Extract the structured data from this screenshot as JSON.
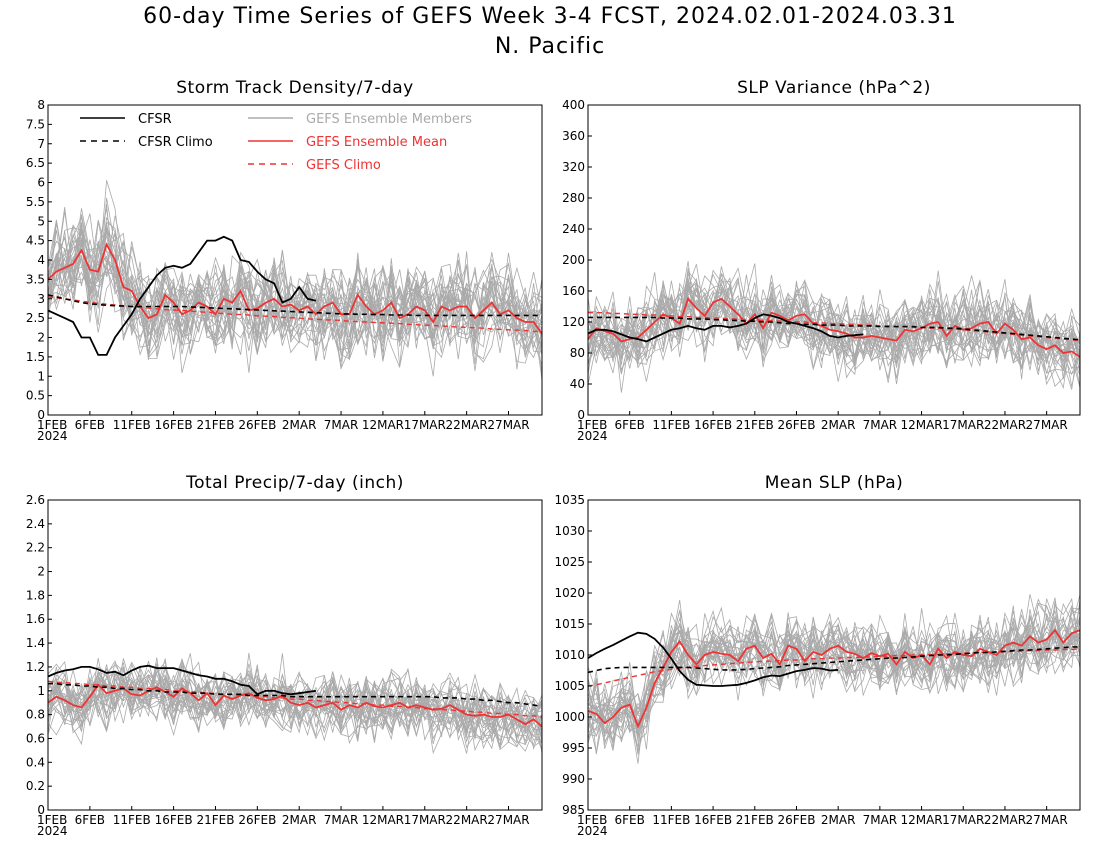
{
  "figure": {
    "title_line1": "60-day Time Series of GEFS Week 3-4 FCST, 2024.02.01-2024.03.31",
    "title_line2": "N. Pacific"
  },
  "legend": [
    {
      "label": "CFSR",
      "color": "#000000",
      "dash": false
    },
    {
      "label": "CFSR Climo",
      "color": "#000000",
      "dash": true
    },
    {
      "label": "GEFS Ensemble Members",
      "color": "#aaaaaa",
      "dash": false
    },
    {
      "label": "GEFS Ensemble Mean",
      "color": "#ee3333",
      "dash": false
    },
    {
      "label": "GEFS Climo",
      "color": "#ee3333",
      "dash": true
    }
  ],
  "colors": {
    "cfsr": "#000000",
    "members": "#aaaaaa",
    "mean": "#ee3333",
    "gefs_climo": "#ee3333"
  },
  "x_axis": {
    "days": 60,
    "tick_labels": [
      "1FEB",
      "6FEB",
      "11FEB",
      "16FEB",
      "21FEB",
      "26FEB",
      "2MAR",
      "7MAR",
      "12MAR",
      "17MAR",
      "22MAR",
      "27MAR"
    ],
    "year_label": "2024"
  },
  "chart_data": [
    {
      "type": "line",
      "title": "Storm Track Density/7-day",
      "ylim": [
        0,
        8
      ],
      "yticks": [
        "0",
        "0.5",
        "1",
        "1.5",
        "2",
        "2.5",
        "3",
        "3.5",
        "4",
        "4.5",
        "5",
        "5.5",
        "6",
        "6.5",
        "7",
        "7.5",
        "8"
      ],
      "x_start": "2024-02-01",
      "series": [
        {
          "name": "CFSR",
          "start": 0,
          "values": [
            2.7,
            2.6,
            2.5,
            2.4,
            2.0,
            2.0,
            1.55,
            1.55,
            2.0,
            2.3,
            2.6,
            3.0,
            3.3,
            3.6,
            3.8,
            3.85,
            3.8,
            3.9,
            4.2,
            4.5,
            4.5,
            4.6,
            4.5,
            4.0,
            3.95,
            3.7,
            3.5,
            3.4,
            2.9,
            3.0,
            3.3,
            3.0,
            2.95
          ]
        },
        {
          "name": "CFSR Climo",
          "start": 0,
          "values": [
            3.1,
            3.05,
            3.0,
            2.95,
            2.9,
            2.87,
            2.85,
            2.83,
            2.82,
            2.81,
            2.8,
            2.8,
            2.8,
            2.8,
            2.8,
            2.8,
            2.8,
            2.79,
            2.78,
            2.77,
            2.76,
            2.75,
            2.74,
            2.73,
            2.72,
            2.71,
            2.7,
            2.69,
            2.68,
            2.67,
            2.66,
            2.65,
            2.64,
            2.63,
            2.62,
            2.61,
            2.61,
            2.6,
            2.6,
            2.59,
            2.59,
            2.58,
            2.58,
            2.58,
            2.57,
            2.57,
            2.57,
            2.57,
            2.57,
            2.57,
            2.57,
            2.57,
            2.57,
            2.57,
            2.57,
            2.57,
            2.57,
            2.57,
            2.57,
            2.57
          ]
        },
        {
          "name": "GEFS Ensemble Mean",
          "start": 0,
          "values": [
            3.5,
            3.7,
            3.8,
            3.9,
            4.25,
            3.75,
            3.7,
            4.4,
            4.0,
            3.3,
            3.2,
            2.8,
            2.5,
            2.6,
            3.1,
            2.9,
            2.6,
            2.7,
            2.9,
            2.8,
            2.6,
            3.0,
            2.9,
            3.2,
            2.7,
            2.75,
            2.9,
            3.0,
            2.8,
            2.85,
            2.7,
            2.8,
            2.6,
            2.8,
            2.9,
            2.6,
            2.6,
            3.1,
            2.8,
            2.6,
            2.7,
            2.9,
            2.5,
            2.6,
            2.8,
            2.7,
            2.4,
            2.8,
            2.7,
            2.8,
            2.8,
            2.5,
            2.7,
            2.9,
            2.6,
            2.7,
            2.5,
            2.4,
            2.4,
            2.1
          ]
        },
        {
          "name": "GEFS Climo",
          "start": 0,
          "values": [
            3.05,
            3.02,
            3.0,
            2.97,
            2.94,
            2.91,
            2.88,
            2.86,
            2.84,
            2.82,
            2.8,
            2.78,
            2.76,
            2.74,
            2.72,
            2.71,
            2.7,
            2.68,
            2.66,
            2.65,
            2.63,
            2.62,
            2.6,
            2.59,
            2.58,
            2.56,
            2.55,
            2.54,
            2.52,
            2.51,
            2.5,
            2.48,
            2.47,
            2.46,
            2.45,
            2.44,
            2.42,
            2.41,
            2.4,
            2.39,
            2.38,
            2.37,
            2.36,
            2.34,
            2.33,
            2.32,
            2.31,
            2.3,
            2.28,
            2.27,
            2.26,
            2.25,
            2.24,
            2.22,
            2.21,
            2.2,
            2.19,
            2.18,
            2.16,
            2.15
          ]
        }
      ],
      "members": {
        "count": 30,
        "spread": 0.75
      }
    },
    {
      "type": "line",
      "title": "SLP Variance (hPa^2)",
      "ylim": [
        0,
        400
      ],
      "yticks": [
        "0",
        "40",
        "80",
        "120",
        "160",
        "200",
        "240",
        "280",
        "320",
        "360",
        "400"
      ],
      "x_start": "2024-02-01",
      "series": [
        {
          "name": "CFSR",
          "start": 0,
          "values": [
            105,
            110,
            110,
            108,
            104,
            100,
            98,
            95,
            100,
            105,
            110,
            112,
            115,
            112,
            110,
            115,
            115,
            113,
            115,
            118,
            125,
            130,
            128,
            125,
            120,
            118,
            115,
            112,
            108,
            102,
            100,
            102,
            103,
            104
          ]
        },
        {
          "name": "CFSR Climo",
          "start": 0,
          "values": [
            126,
            126,
            126,
            126,
            126,
            126,
            126,
            126,
            126,
            125,
            125,
            125,
            124,
            124,
            124,
            123,
            123,
            122,
            122,
            121,
            121,
            120,
            120,
            119,
            118,
            118,
            117,
            117,
            116,
            116,
            116,
            115,
            115,
            115,
            115,
            114,
            114,
            114,
            114,
            114,
            113,
            113,
            113,
            112,
            112,
            111,
            110,
            109,
            108,
            107,
            106,
            105,
            104,
            103,
            102,
            101,
            100,
            99,
            98,
            97
          ]
        },
        {
          "name": "GEFS Ensemble Mean",
          "start": 0,
          "values": [
            98,
            112,
            108,
            105,
            95,
            98,
            100,
            110,
            120,
            130,
            125,
            118,
            150,
            138,
            128,
            145,
            150,
            140,
            130,
            118,
            130,
            112,
            132,
            128,
            122,
            128,
            130,
            118,
            115,
            110,
            108,
            105,
            100,
            100,
            102,
            100,
            98,
            96,
            110,
            108,
            112,
            118,
            120,
            102,
            115,
            110,
            112,
            118,
            120,
            105,
            118,
            110,
            98,
            100,
            90,
            85,
            90,
            80,
            82,
            75
          ]
        },
        {
          "name": "GEFS Climo",
          "start": 0,
          "values": [
            132,
            132,
            132,
            131,
            131,
            130,
            130,
            129,
            129,
            128,
            128,
            127,
            127,
            126,
            126,
            125,
            125,
            124,
            124,
            123,
            123,
            122,
            122,
            121,
            121,
            120,
            120,
            119,
            119,
            118,
            118,
            117,
            117,
            116,
            116,
            115,
            115,
            114,
            114,
            113,
            113,
            112,
            112,
            111,
            111,
            110,
            109,
            108,
            107,
            106,
            105,
            104,
            103,
            102,
            101,
            100,
            99,
            98,
            97,
            96
          ]
        }
      ],
      "members": {
        "count": 30,
        "spread": 30
      }
    },
    {
      "type": "line",
      "title": "Total Precip/7-day (inch)",
      "ylim": [
        0,
        2.6
      ],
      "yticks": [
        "0",
        "0.2",
        "0.4",
        "0.6",
        "0.8",
        "1",
        "1.2",
        "1.4",
        "1.6",
        "1.8",
        "2",
        "2.2",
        "2.4",
        "2.6"
      ],
      "x_start": "2024-02-01",
      "series": [
        {
          "name": "CFSR",
          "start": 0,
          "values": [
            1.12,
            1.15,
            1.17,
            1.18,
            1.2,
            1.2,
            1.18,
            1.15,
            1.16,
            1.13,
            1.17,
            1.2,
            1.21,
            1.19,
            1.19,
            1.19,
            1.17,
            1.15,
            1.13,
            1.12,
            1.1,
            1.1,
            1.08,
            1.05,
            1.04,
            0.97,
            1.0,
            1.0,
            0.98,
            0.97,
            0.98,
            0.99,
            1.0
          ]
        },
        {
          "name": "CFSR Climo",
          "start": 0,
          "values": [
            1.06,
            1.06,
            1.05,
            1.05,
            1.04,
            1.04,
            1.03,
            1.03,
            1.02,
            1.02,
            1.01,
            1.01,
            1.0,
            1.0,
            0.99,
            0.99,
            0.99,
            0.98,
            0.98,
            0.98,
            0.97,
            0.97,
            0.97,
            0.97,
            0.96,
            0.96,
            0.96,
            0.96,
            0.96,
            0.95,
            0.95,
            0.95,
            0.95,
            0.95,
            0.95,
            0.95,
            0.95,
            0.95,
            0.95,
            0.95,
            0.95,
            0.95,
            0.95,
            0.95,
            0.95,
            0.95,
            0.95,
            0.94,
            0.94,
            0.94,
            0.93,
            0.93,
            0.92,
            0.92,
            0.91,
            0.9,
            0.9,
            0.89,
            0.88,
            0.87
          ]
        },
        {
          "name": "GEFS Ensemble Mean",
          "start": 0,
          "values": [
            0.9,
            0.95,
            0.92,
            0.88,
            0.86,
            0.95,
            1.05,
            0.98,
            1.0,
            1.02,
            0.97,
            0.96,
            1.0,
            1.03,
            0.99,
            0.95,
            1.02,
            0.98,
            0.92,
            0.98,
            0.88,
            0.96,
            0.93,
            0.96,
            0.98,
            0.94,
            0.92,
            0.93,
            0.96,
            0.9,
            0.88,
            0.9,
            0.86,
            0.88,
            0.9,
            0.84,
            0.88,
            0.86,
            0.9,
            0.87,
            0.86,
            0.88,
            0.9,
            0.86,
            0.88,
            0.86,
            0.84,
            0.85,
            0.88,
            0.84,
            0.8,
            0.79,
            0.8,
            0.78,
            0.78,
            0.8,
            0.76,
            0.72,
            0.76,
            0.7
          ]
        },
        {
          "name": "GEFS Climo",
          "start": 0,
          "values": [
            1.08,
            1.07,
            1.07,
            1.06,
            1.06,
            1.05,
            1.05,
            1.04,
            1.04,
            1.03,
            1.03,
            1.02,
            1.02,
            1.01,
            1.01,
            1.0,
            1.0,
            0.99,
            0.99,
            0.98,
            0.98,
            0.97,
            0.97,
            0.96,
            0.96,
            0.95,
            0.95,
            0.94,
            0.94,
            0.93,
            0.93,
            0.92,
            0.92,
            0.91,
            0.91,
            0.9,
            0.9,
            0.89,
            0.89,
            0.88,
            0.88,
            0.87,
            0.87,
            0.86,
            0.86,
            0.85,
            0.85,
            0.84,
            0.84,
            0.83,
            0.83,
            0.82,
            0.82,
            0.81,
            0.81,
            0.8,
            0.8,
            0.79,
            0.79,
            0.78
          ]
        }
      ],
      "members": {
        "count": 30,
        "spread": 0.16
      }
    },
    {
      "type": "line",
      "title": "Mean SLP (hPa)",
      "ylim": [
        985,
        1035
      ],
      "yticks": [
        "985",
        "990",
        "995",
        "1000",
        "1005",
        "1010",
        "1015",
        "1020",
        "1025",
        "1030",
        "1035"
      ],
      "x_start": "2024-02-01",
      "series": [
        {
          "name": "CFSR",
          "start": 0,
          "values": [
            1009.5,
            1010.3,
            1011,
            1011.6,
            1012.3,
            1013,
            1013.6,
            1013.4,
            1012.6,
            1011.2,
            1009.4,
            1007.4,
            1006,
            1005.2,
            1005.1,
            1005.0,
            1005.0,
            1005.1,
            1005.2,
            1005.5,
            1005.9,
            1006.4,
            1006.7,
            1006.6,
            1007.0,
            1007.4,
            1007.6,
            1007.9,
            1007.8,
            1007.5,
            1007.6
          ]
        },
        {
          "name": "CFSR Climo",
          "start": 0,
          "values": [
            1007.2,
            1007.5,
            1007.8,
            1007.9,
            1008,
            1008,
            1008,
            1008,
            1008,
            1008,
            1008,
            1008,
            1008,
            1007.9,
            1007.8,
            1007.7,
            1007.6,
            1007.6,
            1007.6,
            1007.7,
            1007.8,
            1007.9,
            1008.0,
            1008.1,
            1008.3,
            1008.4,
            1008.5,
            1008.6,
            1008.7,
            1008.8,
            1008.9,
            1009.0,
            1009.1,
            1009.2,
            1009.3,
            1009.4,
            1009.5,
            1009.5,
            1009.6,
            1009.7,
            1009.8,
            1009.9,
            1010.0,
            1010.0,
            1010.1,
            1010.2,
            1010.3,
            1010.4,
            1010.4,
            1010.5,
            1010.6,
            1010.7,
            1010.8,
            1010.8,
            1010.9,
            1011.0,
            1011.1,
            1011.2,
            1011.3,
            1011.3
          ]
        },
        {
          "name": "GEFS Ensemble Mean",
          "start": 0,
          "values": [
            1001,
            1000.5,
            999,
            1000,
            1001.5,
            1002,
            998.5,
            1001.5,
            1005.5,
            1008,
            1010.5,
            1012.2,
            1010,
            1008.5,
            1010,
            1010.5,
            1010.2,
            1010,
            1009,
            1011,
            1011.5,
            1009.5,
            1010.2,
            1008.5,
            1011.5,
            1011,
            1009,
            1010.5,
            1010,
            1011,
            1011.5,
            1010.5,
            1010.2,
            1009.5,
            1010.3,
            1009.8,
            1010.2,
            1008.5,
            1010.5,
            1009.5,
            1010,
            1008.5,
            1011,
            1009.5,
            1010.5,
            1010,
            1009.8,
            1011,
            1010.5,
            1010,
            1011.5,
            1012,
            1011.5,
            1013,
            1012,
            1012.5,
            1014,
            1012,
            1013.5,
            1014
          ]
        },
        {
          "name": "GEFS Climo",
          "start": 0,
          "values": [
            1005,
            1005.2,
            1005.5,
            1005.8,
            1006.1,
            1006.4,
            1006.7,
            1007,
            1007.3,
            1007.5,
            1007.7,
            1007.9,
            1008.0,
            1008.2,
            1008.3,
            1008.4,
            1008.5,
            1008.6,
            1008.7,
            1008.8,
            1008.9,
            1009.0,
            1009.0,
            1009.1,
            1009.2,
            1009.2,
            1009.3,
            1009.4,
            1009.4,
            1009.5,
            1009.5,
            1009.6,
            1009.6,
            1009.7,
            1009.7,
            1009.8,
            1009.8,
            1009.9,
            1009.9,
            1010.0,
            1010.0,
            1010.1,
            1010.1,
            1010.2,
            1010.2,
            1010.3,
            1010.3,
            1010.4,
            1010.4,
            1010.5,
            1010.5,
            1010.6,
            1010.6,
            1010.7,
            1010.7,
            1010.8,
            1010.8,
            1010.9,
            1010.9,
            1011.0
          ]
        }
      ],
      "members": {
        "count": 30,
        "spread": 3.5
      }
    }
  ]
}
